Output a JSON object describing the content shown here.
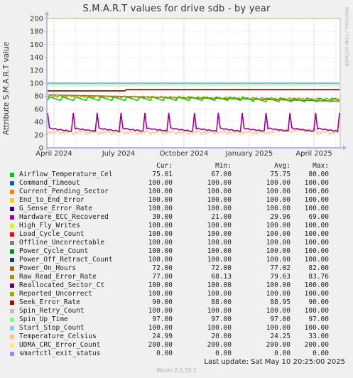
{
  "title": "S.M.A.R.T values for drive sdb - by year",
  "watermark": "RRDTOOL / TOBI OETIKER",
  "columns": {
    "cur": "Cur:",
    "min": "Min:",
    "avg": "Avg:",
    "max": "Max:"
  },
  "footer": {
    "last_update": "Last update:  Sat May 10 20:25:00 2025",
    "munin": "Munin 2.0.33-1"
  },
  "chart_data": {
    "type": "line",
    "ylabel": "Attribute S.M.A.R.T value",
    "ylim": [
      0,
      200
    ],
    "yticks": [
      "0",
      "20",
      "40",
      "60",
      "80",
      "100",
      "120",
      "140",
      "160",
      "180",
      "200"
    ],
    "xlabels": [
      "April 2024",
      "July 2024",
      "October 2024",
      "January 2025",
      "April 2025"
    ],
    "grid": true,
    "series": [
      {
        "name": "Airflow_Temperature_Cel",
        "color": "#00cc00",
        "cur": "75.01",
        "min": "67.00",
        "avg": "75.75",
        "max": "80.00"
      },
      {
        "name": "Command_Timeout",
        "color": "#0066b3",
        "cur": "100.00",
        "min": "100.00",
        "avg": "100.00",
        "max": "100.00"
      },
      {
        "name": "Current_Pending_Sector",
        "color": "#ff8000",
        "cur": "100.00",
        "min": "100.00",
        "avg": "100.00",
        "max": "100.00"
      },
      {
        "name": "End_to_End_Error",
        "color": "#ffcc00",
        "cur": "100.00",
        "min": "100.00",
        "avg": "100.00",
        "max": "100.00"
      },
      {
        "name": "G_Sense_Error_Rate",
        "color": "#330099",
        "cur": "100.00",
        "min": "100.00",
        "avg": "100.00",
        "max": "100.00"
      },
      {
        "name": "Hardware_ECC_Recovered",
        "color": "#990099",
        "cur": "30.00",
        "min": "21.00",
        "avg": "29.96",
        "max": "69.00"
      },
      {
        "name": "High_Fly_Writes",
        "color": "#ccff00",
        "cur": "100.00",
        "min": "100.00",
        "avg": "100.00",
        "max": "100.00"
      },
      {
        "name": "Load_Cycle_Count",
        "color": "#ff0000",
        "cur": "100.00",
        "min": "100.00",
        "avg": "100.00",
        "max": "100.00"
      },
      {
        "name": "Offline_Uncorrectable",
        "color": "#808080",
        "cur": "100.00",
        "min": "100.00",
        "avg": "100.00",
        "max": "100.00"
      },
      {
        "name": "Power_Cycle_Count",
        "color": "#008f00",
        "cur": "100.00",
        "min": "100.00",
        "avg": "100.00",
        "max": "100.00"
      },
      {
        "name": "Power_Off_Retract_Count",
        "color": "#00487d",
        "cur": "100.00",
        "min": "100.00",
        "avg": "100.00",
        "max": "100.00"
      },
      {
        "name": "Power_On_Hours",
        "color": "#b35a00",
        "cur": "72.00",
        "min": "72.00",
        "avg": "77.02",
        "max": "82.00"
      },
      {
        "name": "Raw_Read_Error_Rate",
        "color": "#b38f00",
        "cur": "77.00",
        "min": "68.13",
        "avg": "79.63",
        "max": "83.76"
      },
      {
        "name": "Reallocated_Sector_Ct",
        "color": "#6b006b",
        "cur": "100.00",
        "min": "100.00",
        "avg": "100.00",
        "max": "100.00"
      },
      {
        "name": "Reported_Uncorrect",
        "color": "#8fb300",
        "cur": "100.00",
        "min": "100.00",
        "avg": "100.00",
        "max": "100.00"
      },
      {
        "name": "Seek_Error_Rate",
        "color": "#b30000",
        "cur": "90.00",
        "min": "88.00",
        "avg": "88.95",
        "max": "90.00"
      },
      {
        "name": "Spin_Retry_Count",
        "color": "#bebebe",
        "cur": "100.00",
        "min": "100.00",
        "avg": "100.00",
        "max": "100.00"
      },
      {
        "name": "Spin_Up_Time",
        "color": "#80ff80",
        "cur": "97.00",
        "min": "97.00",
        "avg": "97.00",
        "max": "97.00"
      },
      {
        "name": "Start_Stop_Count",
        "color": "#80c9ff",
        "cur": "100.00",
        "min": "100.00",
        "avg": "100.00",
        "max": "100.00"
      },
      {
        "name": "Temperature_Celsius",
        "color": "#ffc080",
        "cur": "24.99",
        "min": "20.00",
        "avg": "24.25",
        "max": "33.00"
      },
      {
        "name": "UDMA_CRC_Error_Count",
        "color": "#ffe680",
        "cur": "200.00",
        "min": "200.00",
        "avg": "200.00",
        "max": "200.00"
      },
      {
        "name": "smartctl_exit_status",
        "color": "#aa80ff",
        "cur": "0.00",
        "min": "0.00",
        "avg": "0.00",
        "max": "0.00"
      }
    ]
  }
}
